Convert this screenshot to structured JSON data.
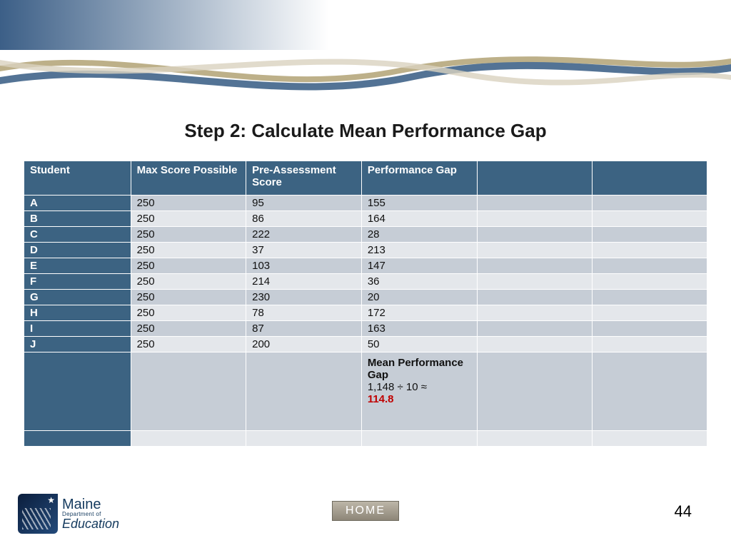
{
  "title": "Step 2: Calculate Mean Performance Gap",
  "table": {
    "columns": [
      "Student",
      "Max Score Possible",
      "Pre-Assessment Score",
      "Performance Gap",
      "",
      ""
    ],
    "rows": [
      {
        "student": "A",
        "max": "250",
        "pre": "95",
        "gap": "155"
      },
      {
        "student": "B",
        "max": "250",
        "pre": "86",
        "gap": "164"
      },
      {
        "student": "C",
        "max": "250",
        "pre": "222",
        "gap": "28"
      },
      {
        "student": "D",
        "max": "250",
        "pre": "37",
        "gap": "213"
      },
      {
        "student": "E",
        "max": "250",
        "pre": "103",
        "gap": "147"
      },
      {
        "student": "F",
        "max": "250",
        "pre": "214",
        "gap": "36"
      },
      {
        "student": "G",
        "max": "250",
        "pre": "230",
        "gap": "20"
      },
      {
        "student": "H",
        "max": "250",
        "pre": "78",
        "gap": "172"
      },
      {
        "student": "I",
        "max": "250",
        "pre": "87",
        "gap": "163"
      },
      {
        "student": "J",
        "max": "250",
        "pre": "200",
        "gap": "50"
      }
    ],
    "summary": {
      "title": "Mean Performance Gap",
      "calc": "1,148 ÷ 10 ≈",
      "value": "114.8"
    },
    "header_bg": "#3c6382",
    "header_fg": "#ffffff",
    "row_odd_bg": "#c6cdd6",
    "row_even_bg": "#e4e7eb",
    "result_color": "#c00000"
  },
  "home_label": "HOME",
  "page_number": "44",
  "logo": {
    "line1": "Maine",
    "line2": "Department of",
    "line3": "Education"
  },
  "waves": {
    "gradient_from": "#3c5f87",
    "gradient_to": "#ffffff",
    "wave1": "#b6a77c",
    "wave2": "#4a6b8f",
    "wave3": "#d9d2bf"
  }
}
